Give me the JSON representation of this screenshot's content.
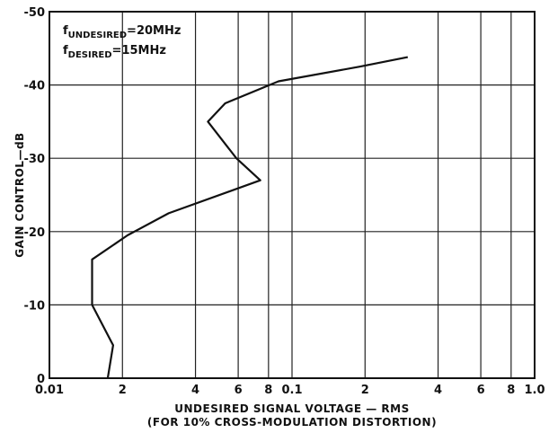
{
  "chart_data": {
    "type": "line",
    "x_scale": "log",
    "xlim": [
      0.01,
      1.0
    ],
    "ylim": [
      0,
      -50
    ],
    "grid": true,
    "x_tick_labels": [
      "0.01",
      "2",
      "4",
      "6",
      "8",
      "0.1",
      "2",
      "4",
      "6",
      "8",
      "1.0"
    ],
    "x_tick_values": [
      0.01,
      0.02,
      0.04,
      0.06,
      0.08,
      0.1,
      0.2,
      0.4,
      0.6,
      0.8,
      1.0
    ],
    "y_tick_labels": [
      "-50",
      "-40",
      "-30",
      "-20",
      "-10",
      "0"
    ],
    "y_tick_values": [
      -50,
      -40,
      -30,
      -20,
      -10,
      0
    ],
    "ylabel": "GAIN CONTROL—dB",
    "xlabel_line1": "UNDESIRED  SIGNAL  VOLTAGE — RMS",
    "xlabel_line2": "(FOR 10% CROSS-MODULATION DISTORTION)",
    "annotation": {
      "line1_main": "f",
      "line1_sub": "UNDESIRED",
      "line1_value": "=20MHz",
      "line2_main": "f",
      "line2_sub": "DESIRED",
      "line2_value": "=15MHz"
    },
    "series": [
      {
        "x": [
          0.0174,
          0.0183,
          0.015,
          0.015,
          0.021,
          0.031,
          0.074,
          0.059,
          0.045,
          0.053,
          0.088,
          0.19,
          0.3
        ],
        "y": [
          0,
          -4.5,
          -10,
          -16.2,
          -19.5,
          -22.5,
          -27,
          -30,
          -35,
          -37.5,
          -40.5,
          -42.5,
          -43.8
        ]
      }
    ]
  }
}
